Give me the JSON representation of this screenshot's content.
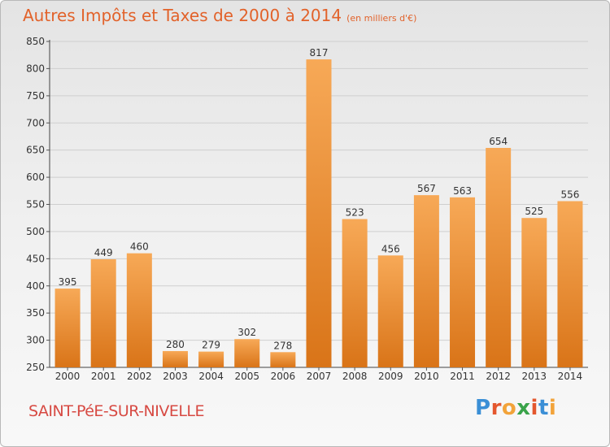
{
  "header": {
    "title": "Autres Impôts et Taxes de 2000 à 2014",
    "unit": "(en milliers d'€)"
  },
  "footer": {
    "town": "SAINT-PéE-SUR-NIVELLE",
    "logo": {
      "letters": [
        "P",
        "r",
        "o",
        "x",
        "i",
        "t",
        "i"
      ],
      "colors": [
        "#3b8fd6",
        "#e4572e",
        "#f2a33a",
        "#3aa34a",
        "#e4572e",
        "#3b8fd6",
        "#f2a33a"
      ]
    }
  },
  "colors": {
    "bar_light": "#f7a957",
    "bar_dark": "#d97418",
    "title": "#e2622a",
    "town": "#d74a43"
  },
  "chart_data": {
    "type": "bar",
    "categories": [
      "2000",
      "2001",
      "2002",
      "2003",
      "2004",
      "2005",
      "2006",
      "2007",
      "2008",
      "2009",
      "2010",
      "2011",
      "2012",
      "2013",
      "2014"
    ],
    "values": [
      395,
      449,
      460,
      280,
      279,
      302,
      278,
      817,
      523,
      456,
      567,
      563,
      654,
      525,
      556
    ],
    "title": "Autres Impôts et Taxes de 2000 à 2014",
    "ylim": [
      250,
      850
    ],
    "yticks": [
      250,
      300,
      350,
      400,
      450,
      500,
      550,
      600,
      650,
      700,
      750,
      800,
      850
    ],
    "grid": true,
    "data_labels": true
  }
}
